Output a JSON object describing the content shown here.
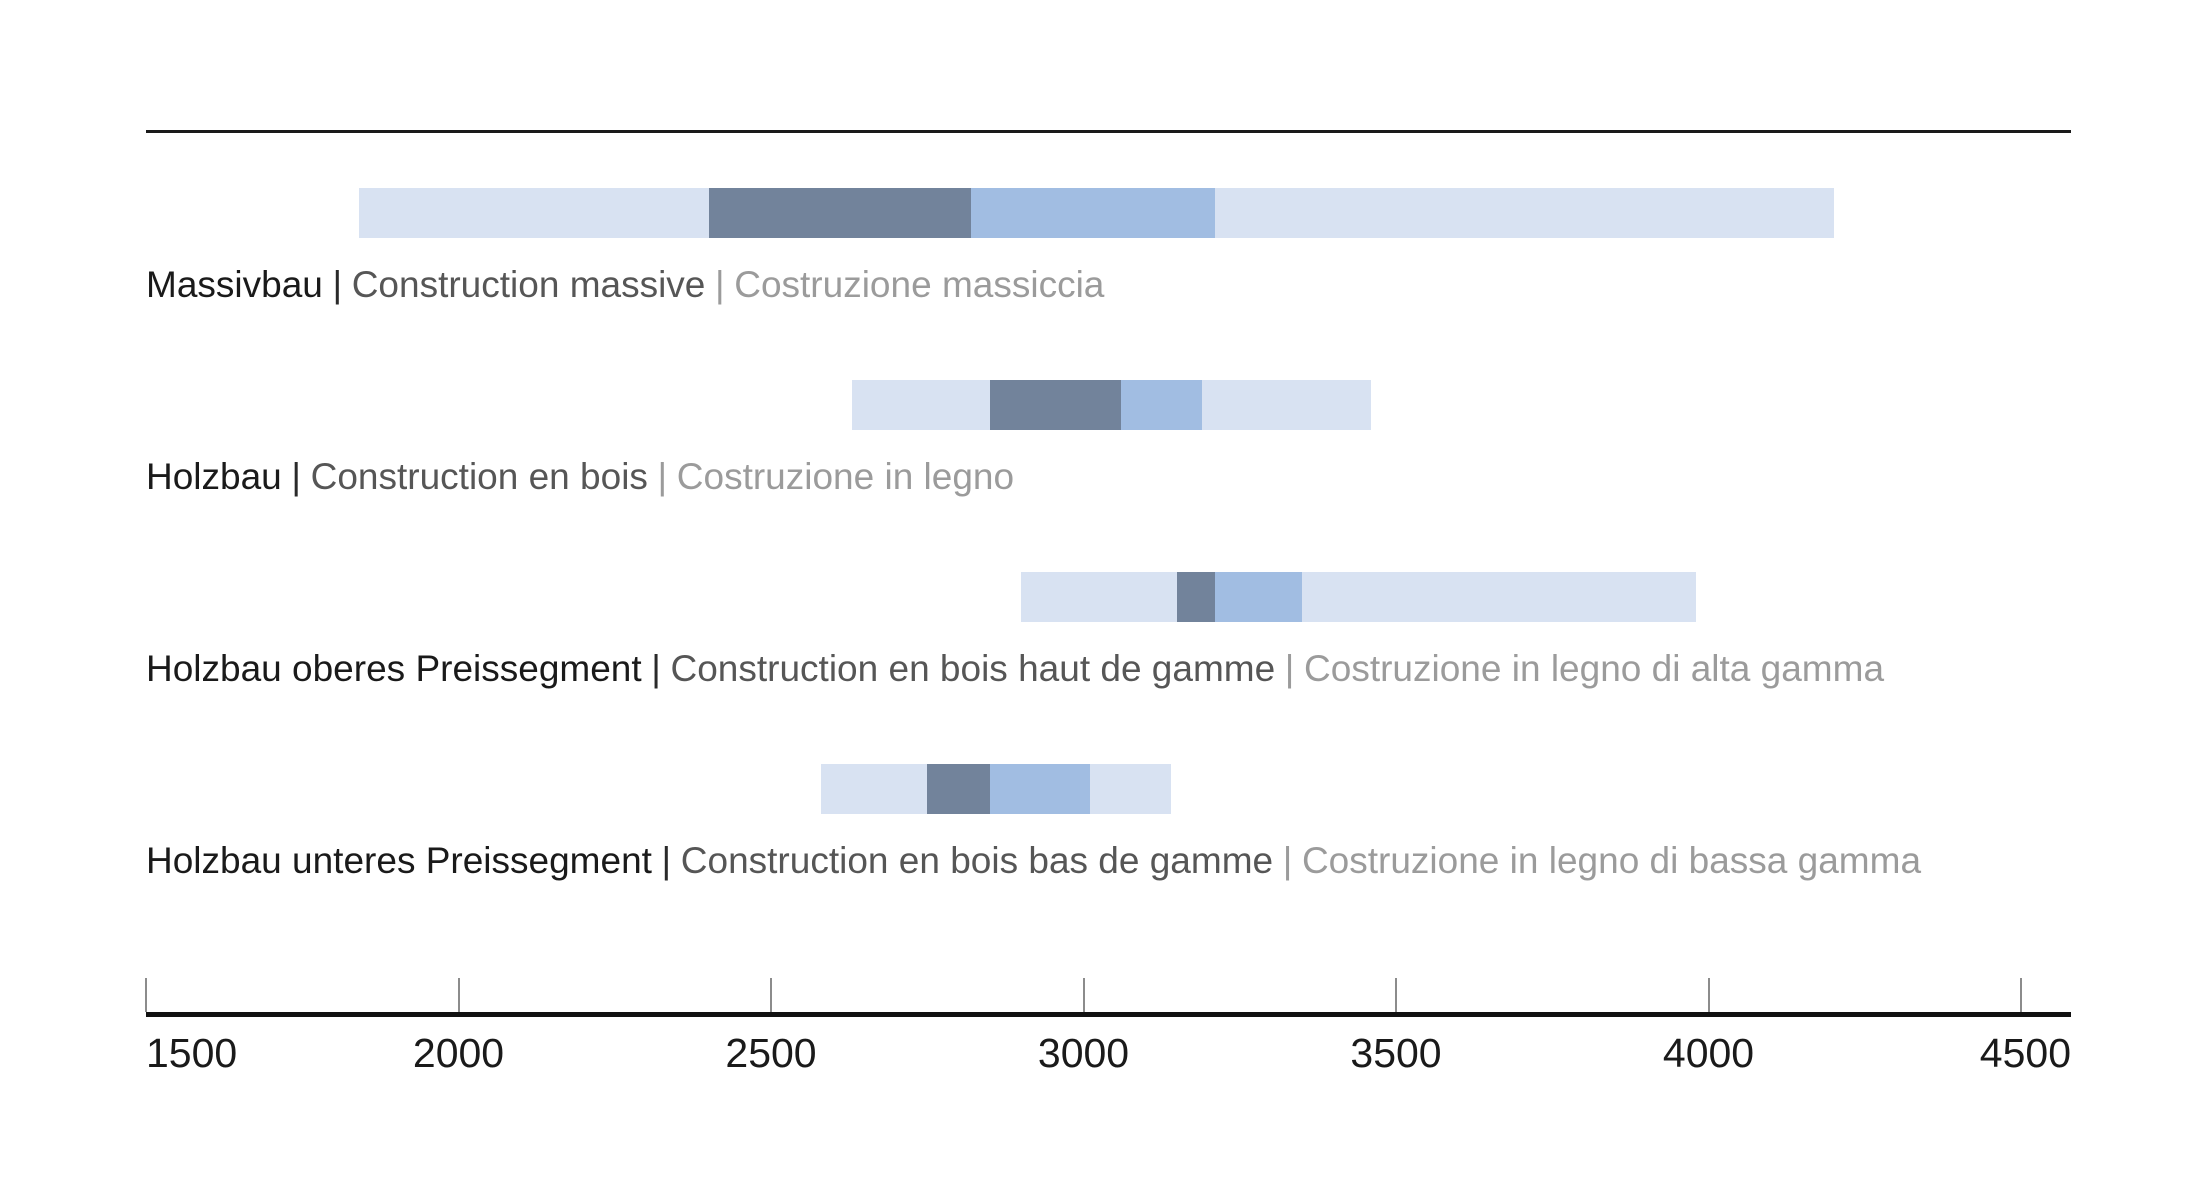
{
  "chart_data": {
    "type": "bar",
    "subtype": "horizontal-range-bar",
    "title": "",
    "xlabel": "",
    "ylabel": "",
    "legend": "none",
    "axis": {
      "min": 1500,
      "max": 4580,
      "tick_values": [
        1500,
        2000,
        2500,
        3000,
        3500,
        4000,
        4500
      ],
      "tick_labels": [
        "1500",
        "2000",
        "2500",
        "3000",
        "3500",
        "4000",
        "4500"
      ],
      "grid": false,
      "tick_marks": "above-axis-line",
      "tick_label_position": "below-axis-line",
      "first_label_alignment": "left-on-axis-start",
      "last_label_alignment": "right-on-axis-end"
    },
    "separator": "|",
    "segment_shades": [
      "outer",
      "dark",
      "medium",
      "outer"
    ],
    "colors": {
      "outer": "#D8E2F2",
      "dark": "#72839B",
      "medium": "#A1BDE2",
      "rule": "#1A1A1A",
      "axis_line": "#111111",
      "tick_mark": "#8C8C8C",
      "tick_label": "#1A1A1A",
      "label_de": "#1A1A1A",
      "label_fr": "#565656",
      "label_it": "#9B9B9B",
      "sep1": "#2A2A2A",
      "sep2": "#9B9B9B"
    },
    "rows": [
      {
        "labels": {
          "de": "Massivbau",
          "fr": "Construction massive",
          "it": "Costruzione massiccia"
        },
        "bounds": [
          1840,
          2400,
          2820,
          3210,
          4200
        ]
      },
      {
        "labels": {
          "de": "Holzbau",
          "fr": "Construction en bois",
          "it": "Costruzione in legno"
        },
        "bounds": [
          2630,
          2850,
          3060,
          3190,
          3460
        ]
      },
      {
        "labels": {
          "de": "Holzbau oberes Preissegment",
          "fr": "Construction en bois haut de gamme",
          "it": "Costruzione in legno di alta gamma"
        },
        "bounds": [
          2900,
          3150,
          3210,
          3350,
          3980
        ]
      },
      {
        "labels": {
          "de": "Holzbau unteres Preissegment",
          "fr": "Construction en bois bas de gamme",
          "it": "Costruzione in legno di bassa gamma"
        },
        "bounds": [
          2580,
          2750,
          2850,
          3010,
          3140
        ]
      }
    ]
  }
}
